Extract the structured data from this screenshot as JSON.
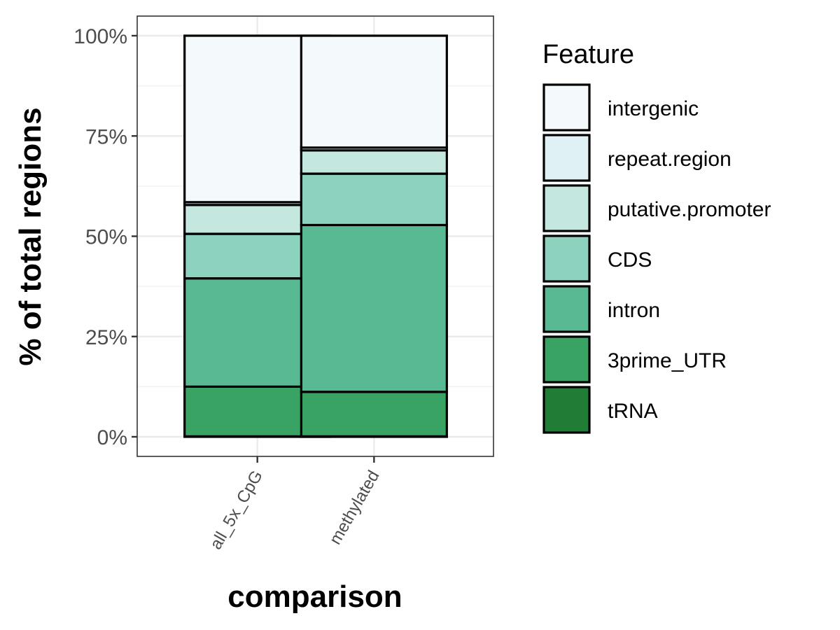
{
  "chart_data": {
    "type": "bar",
    "stacked": true,
    "title": "",
    "xlabel": "comparison",
    "ylabel": "% of total regions",
    "ylim": [
      0,
      100
    ],
    "y_ticks": [
      "0%",
      "25%",
      "50%",
      "75%",
      "100%"
    ],
    "y_tick_values": [
      0,
      25,
      50,
      75,
      100
    ],
    "grid": true,
    "legend_title": "Feature",
    "legend_position": "right",
    "categories": [
      "all_5x_CpG",
      "methylated"
    ],
    "series": [
      {
        "name": "tRNA",
        "color": "#1f7d36",
        "values": [
          0.1,
          0.1
        ]
      },
      {
        "name": "3prime_UTR",
        "color": "#38a363",
        "values": [
          12.4,
          11.1
        ]
      },
      {
        "name": "intron",
        "color": "#58b993",
        "values": [
          27.0,
          41.6
        ]
      },
      {
        "name": "CDS",
        "color": "#8cd2be",
        "values": [
          11.1,
          12.8
        ]
      },
      {
        "name": "putative.promoter",
        "color": "#c4e8df",
        "values": [
          7.2,
          5.8
        ]
      },
      {
        "name": "repeat.region",
        "color": "#e0f1f6",
        "values": [
          0.7,
          0.7
        ]
      },
      {
        "name": "intergenic",
        "color": "#f4f9fc",
        "values": [
          41.5,
          27.9
        ]
      }
    ],
    "legend_order": [
      "intergenic",
      "repeat.region",
      "putative.promoter",
      "CDS",
      "intron",
      "3prime_UTR",
      "tRNA"
    ]
  }
}
